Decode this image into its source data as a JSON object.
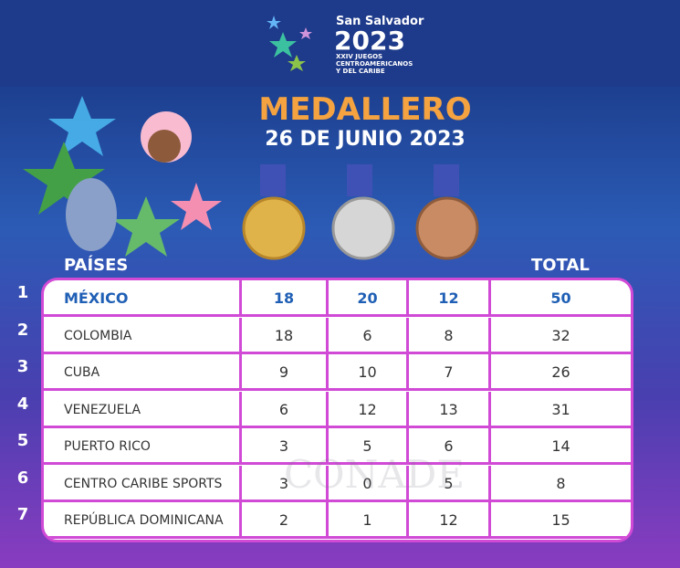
{
  "header": {
    "event": "San Salvador",
    "year": "2023",
    "subtitle": [
      "XXIV JUEGOS",
      "CENTROAMERICANOS",
      "Y DEL CARIBE"
    ]
  },
  "title": "MEDALLERO",
  "date": "26 DE JUNIO 2023",
  "table": {
    "headers": {
      "country": "PAÍSES",
      "total": "TOTAL"
    },
    "rows": [
      {
        "rank": 1,
        "country": "MÉXICO",
        "gold": 18,
        "silver": 20,
        "bronze": 12,
        "total": 50
      },
      {
        "rank": 2,
        "country": "COLOMBIA",
        "gold": 18,
        "silver": 6,
        "bronze": 8,
        "total": 32
      },
      {
        "rank": 3,
        "country": "CUBA",
        "gold": 9,
        "silver": 10,
        "bronze": 7,
        "total": 26
      },
      {
        "rank": 4,
        "country": "VENEZUELA",
        "gold": 6,
        "silver": 12,
        "bronze": 13,
        "total": 31
      },
      {
        "rank": 5,
        "country": "PUERTO RICO",
        "gold": 3,
        "silver": 5,
        "bronze": 6,
        "total": 14
      },
      {
        "rank": 6,
        "country": "CENTRO CARIBE SPORTS",
        "gold": 3,
        "silver": 0,
        "bronze": 5,
        "total": 8
      },
      {
        "rank": 7,
        "country": "REPÚBLICA DOMINICANA",
        "gold": 2,
        "silver": 1,
        "bronze": 12,
        "total": 15
      }
    ]
  },
  "watermark": "CONADE"
}
